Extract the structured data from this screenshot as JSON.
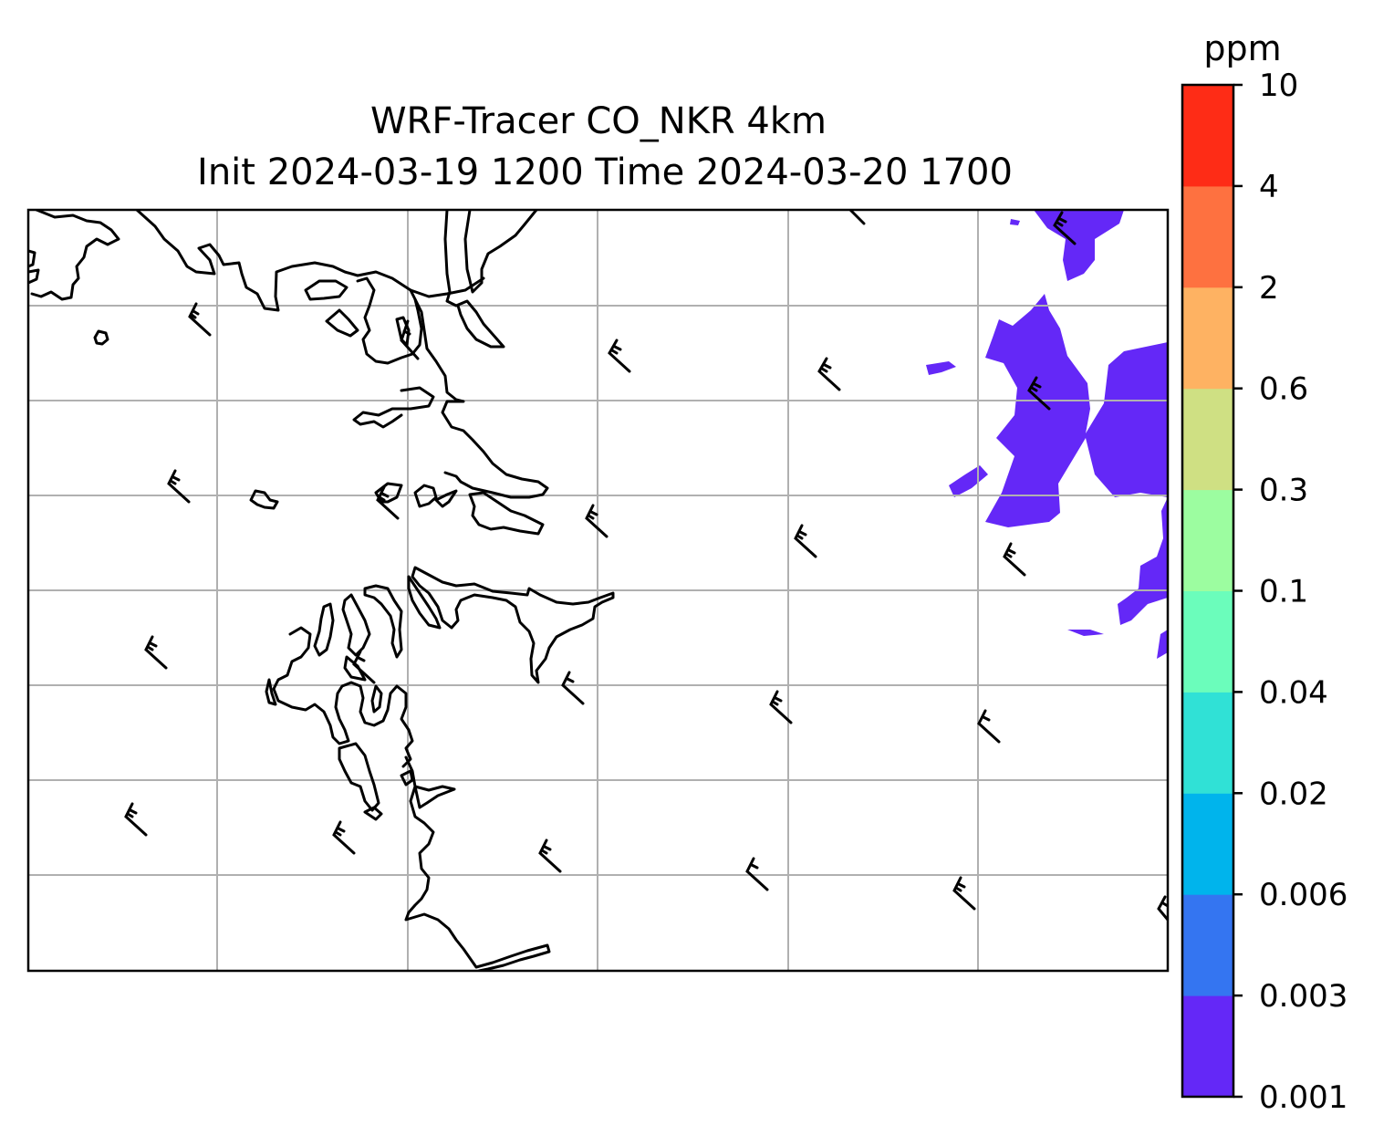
{
  "title_line1": "WRF-Tracer CO_NKR 4km",
  "title_line2": "Init 2024-03-19 1200 Time 2024-03-20 1700",
  "colorbar": {
    "unit": "ppm",
    "levels": [
      "0.001",
      "0.003",
      "0.006",
      "0.02",
      "0.04",
      "0.1",
      "0.3",
      "0.6",
      "2",
      "4",
      "10"
    ],
    "colors": [
      "#6428f7",
      "#3475f1",
      "#00b4ec",
      "#30e1d6",
      "#6bfdbb",
      "#9cfda0",
      "#cfe083",
      "#feb262",
      "#fe7140",
      "#fe2c16"
    ]
  },
  "map": {
    "gridline_color": "#b0b0b0",
    "coastline_color": "#000000",
    "filled_level_color": "#6428f7",
    "wind_barbs": "black"
  }
}
